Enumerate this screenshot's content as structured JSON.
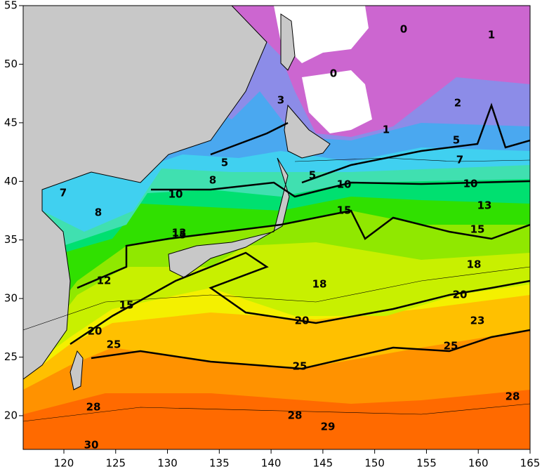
{
  "map": {
    "xlim": [
      116.07,
      165
    ],
    "ylim": [
      17.12,
      55
    ],
    "xticks": [
      120,
      125,
      130,
      135,
      140,
      145,
      150,
      155,
      160,
      165
    ],
    "yticks": [
      20,
      25,
      30,
      35,
      40,
      45,
      50,
      55
    ],
    "contour_labels": [
      "0",
      "0",
      "1",
      "1",
      "2",
      "3",
      "5",
      "5",
      "5",
      "7",
      "7",
      "8",
      "8",
      "10",
      "10",
      "10",
      "12",
      "13",
      "13",
      "15",
      "15",
      "15",
      "15",
      "18",
      "18",
      "20",
      "20",
      "20",
      "23",
      "25",
      "25",
      "25",
      "28",
      "28",
      "28",
      "29",
      "30"
    ]
  }
}
